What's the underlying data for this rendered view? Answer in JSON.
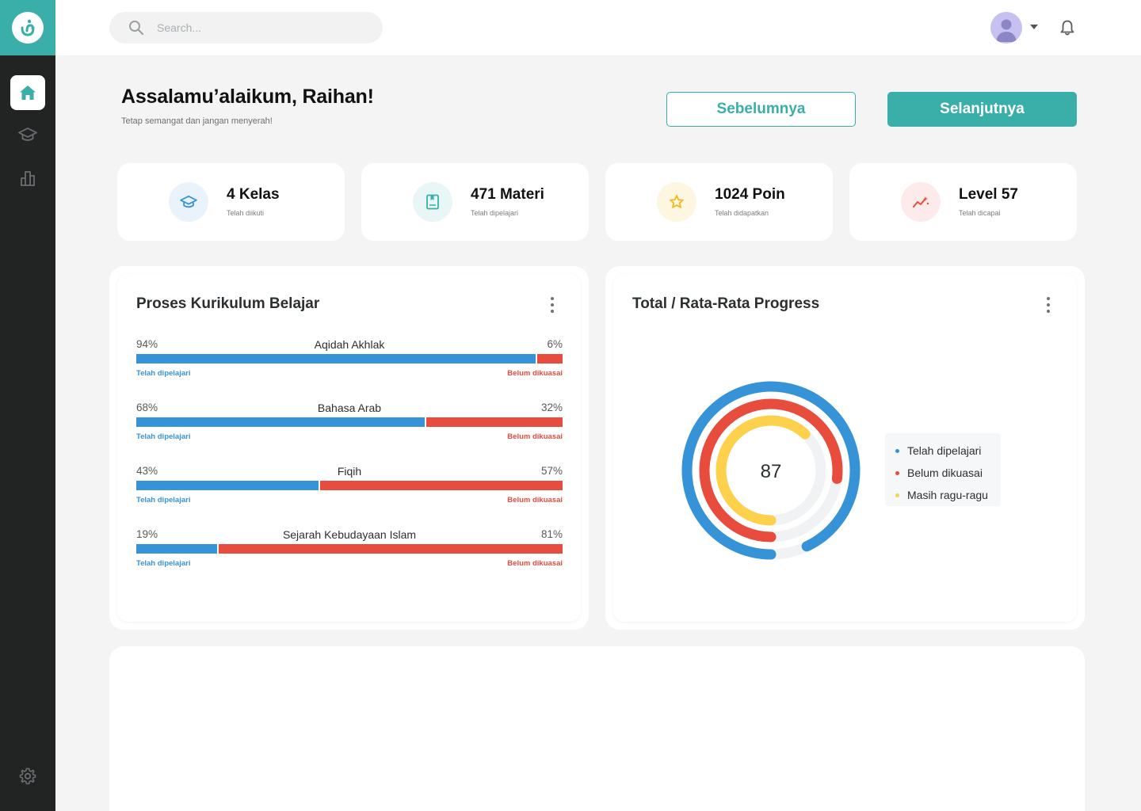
{
  "search": {
    "placeholder": "Search..."
  },
  "greeting": {
    "title": "Assalamu’alaikum, Raihan!",
    "subtitle": "Tetap semangat dan jangan menyerah!"
  },
  "nav": {
    "prev_label": "Sebelumnya",
    "next_label": "Selanjutnya"
  },
  "stats": [
    {
      "value": "4 Kelas",
      "label": "Telah diikuti",
      "icon": "graduation-cap-icon",
      "color": "#3793d8",
      "bg": "#eaf3fb"
    },
    {
      "value": "471 Materi",
      "label": "Telah dipelajari",
      "icon": "book-icon",
      "color": "#3aafa9",
      "bg": "#e8f6f5"
    },
    {
      "value": "1024 Poin",
      "label": "Telah didapatkan",
      "icon": "star-icon",
      "color": "#f2b91e",
      "bg": "#fdf6e1"
    },
    {
      "value": "Level 57",
      "label": "Telah dicapai",
      "icon": "trend-icon",
      "color": "#e84c3d",
      "bg": "#fcebea"
    }
  ],
  "curriculum": {
    "title": "Proses Kurikulum Belajar",
    "learned_label": "Telah dipelajari",
    "not_mastered_label": "Belum dikuasai",
    "subjects": [
      {
        "name": "Aqidah Akhlak",
        "learned": 94,
        "learned_text": "94%",
        "remaining_text": "6%"
      },
      {
        "name": "Bahasa Arab",
        "learned": 68,
        "learned_text": "68%",
        "remaining_text": "32%"
      },
      {
        "name": "Fiqih",
        "learned": 43,
        "learned_text": "43%",
        "remaining_text": "57%"
      },
      {
        "name": "Sejarah Kebudayaan Islam",
        "learned": 19,
        "learned_text": "19%",
        "remaining_text": "81%"
      }
    ]
  },
  "progress": {
    "title": "Total / Rata-Rata Progress",
    "center_value": "87",
    "colors": {
      "learned": "#3793d8",
      "not_mastered": "#e84c3d",
      "doubt": "#fdd14b",
      "track": "#f1f2f3"
    },
    "legend": [
      {
        "label": "Telah dipelajari",
        "color": "#3793d8"
      },
      {
        "label": "Belum dikuasai",
        "color": "#e84c3d"
      },
      {
        "label": "Masih ragu-ragu",
        "color": "#fdd14b"
      }
    ],
    "ring_fractions": {
      "learned": 0.93,
      "not_mastered": 0.77,
      "doubt": 0.62
    }
  },
  "colors": {
    "accent": "#3aafa9",
    "sidebar": "#222424"
  }
}
